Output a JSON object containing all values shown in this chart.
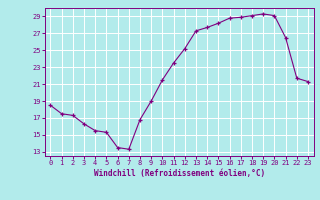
{
  "x": [
    0,
    1,
    2,
    3,
    4,
    5,
    6,
    7,
    8,
    9,
    10,
    11,
    12,
    13,
    14,
    15,
    16,
    17,
    18,
    19,
    20,
    21,
    22,
    23
  ],
  "y": [
    18.5,
    17.5,
    17.3,
    16.3,
    15.5,
    15.3,
    13.5,
    13.3,
    16.8,
    19.0,
    21.5,
    23.5,
    25.2,
    27.3,
    27.7,
    28.2,
    28.8,
    28.9,
    29.1,
    29.3,
    29.1,
    26.5,
    21.7,
    21.3
  ],
  "line_color": "#800080",
  "bg_color": "#b2ebeb",
  "grid_color": "#ffffff",
  "xlabel": "Windchill (Refroidissement éolien,°C)",
  "yticks": [
    13,
    15,
    17,
    19,
    21,
    23,
    25,
    27,
    29
  ],
  "xlim": [
    -0.5,
    23.5
  ],
  "ylim": [
    12.5,
    30.0
  ],
  "tick_color": "#800080",
  "label_fontsize": 5.5,
  "tick_fontsize": 5.0
}
